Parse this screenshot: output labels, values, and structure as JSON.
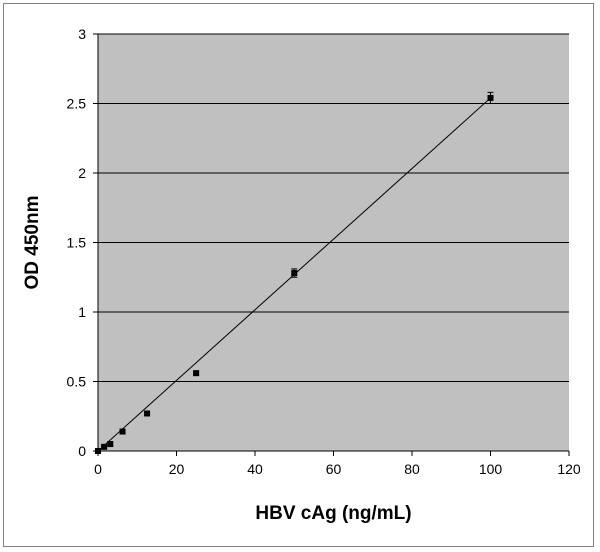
{
  "chart_data": {
    "type": "scatter",
    "xlabel": "HBV cAg (ng/mL)",
    "ylabel": "OD 450nm",
    "xlim": [
      0,
      120
    ],
    "ylim": [
      0,
      3
    ],
    "xticks": [
      0,
      20,
      40,
      60,
      80,
      100,
      120
    ],
    "yticks": [
      0,
      0.5,
      1,
      1.5,
      2,
      2.5,
      3
    ],
    "xtick_labels": [
      "0",
      "20",
      "40",
      "60",
      "80",
      "100",
      "120"
    ],
    "ytick_labels": [
      "0",
      "0.5",
      "1",
      "1.5",
      "2",
      "2.5",
      "3"
    ],
    "grid": "horizontal",
    "plot_background": "#c0c0c0",
    "marker_color": "#000000",
    "series": [
      {
        "x": [
          0,
          1.56,
          3.13,
          6.25,
          12.5,
          25,
          50,
          100
        ],
        "y": [
          0.0,
          0.03,
          0.05,
          0.14,
          0.27,
          0.56,
          1.28,
          2.54
        ],
        "error": [
          0.01,
          0.01,
          0.01,
          0.01,
          0.01,
          0.015,
          0.03,
          0.04
        ]
      }
    ],
    "trendline": {
      "type": "linear",
      "x": [
        0,
        100
      ],
      "y": [
        0.0,
        2.54
      ]
    }
  }
}
